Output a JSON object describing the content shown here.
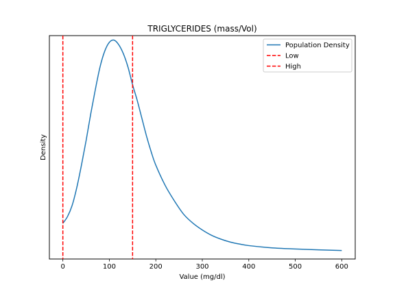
{
  "chart_data": {
    "type": "line",
    "title": "TRIGLYCERIDES (mass/Vol)",
    "xlabel": "Value (mg/dl)",
    "ylabel": "Density",
    "xlim": [
      -29,
      629
    ],
    "ylim": [
      0,
      1.0
    ],
    "xticks": [
      0,
      100,
      200,
      300,
      400,
      500,
      600
    ],
    "show_yticks": false,
    "grid": false,
    "legend_position": "top-right",
    "series": [
      {
        "name": "Population Density",
        "color": "#1f77b4",
        "style": "solid",
        "x": [
          0,
          10,
          20,
          30,
          40,
          50,
          60,
          70,
          80,
          90,
          100,
          110,
          120,
          130,
          140,
          150,
          160,
          170,
          180,
          190,
          200,
          220,
          240,
          260,
          280,
          300,
          320,
          340,
          360,
          380,
          400,
          450,
          500,
          550,
          600
        ],
        "y": [
          0.16,
          0.19,
          0.24,
          0.32,
          0.42,
          0.53,
          0.65,
          0.76,
          0.86,
          0.93,
          0.97,
          0.98,
          0.96,
          0.92,
          0.86,
          0.78,
          0.71,
          0.63,
          0.55,
          0.48,
          0.42,
          0.33,
          0.26,
          0.2,
          0.16,
          0.13,
          0.106,
          0.089,
          0.076,
          0.067,
          0.06,
          0.05,
          0.045,
          0.041,
          0.038
        ]
      },
      {
        "name": "Low",
        "color": "#ff0000",
        "style": "dashed",
        "vline": 0
      },
      {
        "name": "High",
        "color": "#ff0000",
        "style": "dashed",
        "vline": 150
      }
    ]
  }
}
